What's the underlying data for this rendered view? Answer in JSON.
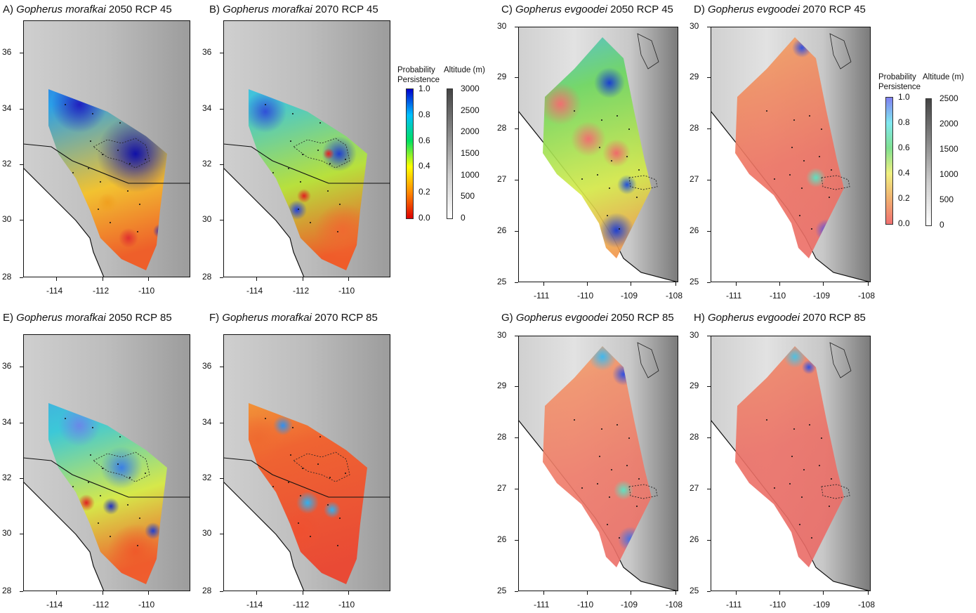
{
  "panels": [
    {
      "id": "A",
      "prefix": "A) ",
      "species": "Gopherus morafkai",
      "suffix": " 2050 RCP 45",
      "region": "morafkai",
      "scenario": "a",
      "xticks": [
        "-114",
        "-112",
        "-110"
      ],
      "yticks": [
        "28",
        "30",
        "32",
        "34",
        "36"
      ]
    },
    {
      "id": "B",
      "prefix": "B) ",
      "species": "Gopherus morafkai",
      "suffix": " 2070 RCP 45",
      "region": "morafkai",
      "scenario": "b",
      "xticks": [
        "-114",
        "-112",
        "-110"
      ],
      "yticks": [
        "28",
        "30",
        "32",
        "34",
        "36"
      ]
    },
    {
      "id": "C",
      "prefix": "C) ",
      "species": "Gopherus evgoodei",
      "suffix": " 2050 RCP 45",
      "region": "evgoodei",
      "scenario": "c",
      "xticks": [
        "-111",
        "-110",
        "-109",
        "-108"
      ],
      "yticks": [
        "25",
        "26",
        "27",
        "28",
        "29",
        "30"
      ]
    },
    {
      "id": "D",
      "prefix": "D) ",
      "species": "Gopherus evgoodei",
      "suffix": " 2070 RCP 45",
      "region": "evgoodei",
      "scenario": "d",
      "xticks": [
        "-111",
        "-110",
        "-109",
        "-108"
      ],
      "yticks": [
        "25",
        "26",
        "27",
        "28",
        "29",
        "30"
      ]
    },
    {
      "id": "E",
      "prefix": "E) ",
      "species": "Gopherus morafkai",
      "suffix": " 2050 RCP 85",
      "region": "morafkai",
      "scenario": "e",
      "xticks": [
        "-114",
        "-112",
        "-110"
      ],
      "yticks": [
        "28",
        "30",
        "32",
        "34",
        "36"
      ]
    },
    {
      "id": "F",
      "prefix": "F) ",
      "species": "Gopherus morafkai",
      "suffix": " 2070 RCP 85",
      "region": "morafkai",
      "scenario": "f",
      "xticks": [
        "-114",
        "-112",
        "-110"
      ],
      "yticks": [
        "28",
        "30",
        "32",
        "34",
        "36"
      ]
    },
    {
      "id": "G",
      "prefix": "G) ",
      "species": "Gopherus evgoodei",
      "suffix": " 2050 RCP 85",
      "region": "evgoodei",
      "scenario": "g",
      "xticks": [
        "-111",
        "-110",
        "-109",
        "-108"
      ],
      "yticks": [
        "25",
        "26",
        "27",
        "28",
        "29",
        "30"
      ]
    },
    {
      "id": "H",
      "prefix": "H) ",
      "species": "Gopherus evgoodei",
      "suffix": " 2070 RCP 85",
      "region": "evgoodei",
      "scenario": "h",
      "xticks": [
        "-111",
        "-110",
        "-109",
        "-108"
      ],
      "yticks": [
        "25",
        "26",
        "27",
        "28",
        "29",
        "30"
      ]
    }
  ],
  "legends": [
    {
      "id": "left",
      "prob_title_1": "Probability",
      "prob_title_2": "Persistence",
      "prob_ticks": [
        "1.0",
        "0.8",
        "0.6",
        "0.4",
        "0.2",
        "0.0"
      ],
      "prob_colors": [
        "#0000cc",
        "#00bfff",
        "#00e060",
        "#ffff00",
        "#ff8800",
        "#dd0000"
      ],
      "alt_title": "Altitude (m)",
      "alt_ticks": [
        "3000",
        "2500",
        "2000",
        "1500",
        "1000",
        "500",
        "0"
      ]
    },
    {
      "id": "right",
      "prob_title_1": "Probability",
      "prob_title_2": "Persistence",
      "prob_ticks": [
        "1.0",
        "0.8",
        "0.6",
        "0.4",
        "0.2",
        "0.0"
      ],
      "prob_colors": [
        "#7f7ff0",
        "#80e8f0",
        "#80e090",
        "#f0f080",
        "#f0b070",
        "#f07070"
      ],
      "alt_title": "Altitude (m)",
      "alt_ticks": [
        "2500",
        "2000",
        "1500",
        "1000",
        "500",
        "0"
      ]
    }
  ],
  "colors": {
    "high": "#1a1ab8",
    "mid": "#2ecc71",
    "low": "#e8352a",
    "terrain": "#bdbdbd"
  }
}
